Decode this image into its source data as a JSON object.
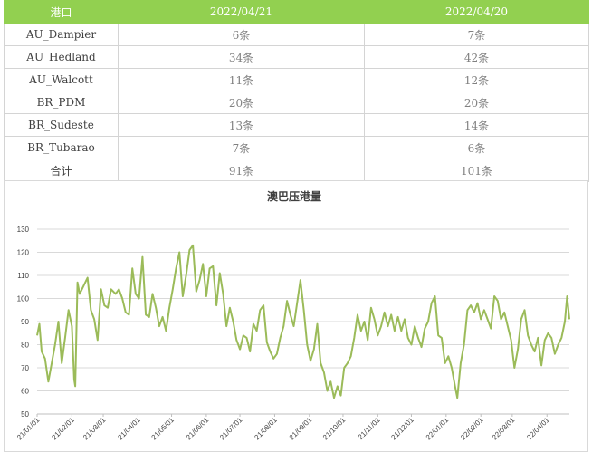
{
  "table": {
    "headers": [
      "港口",
      "2022/04/21",
      "2022/04/20"
    ],
    "rows": [
      [
        "AU_Dampier",
        "6条",
        "7条"
      ],
      [
        "AU_Hedland",
        "34条",
        "42条"
      ],
      [
        "AU_Walcott",
        "11条",
        "12条"
      ],
      [
        "BR_PDM",
        "20条",
        "20条"
      ],
      [
        "BR_Sudeste",
        "13条",
        "14条"
      ],
      [
        "BR_Tubarao",
        "7条",
        "6条"
      ],
      [
        "合计",
        "91条",
        "101条"
      ]
    ]
  },
  "chart_data": {
    "type": "line",
    "title": "澳巴压港量",
    "ylim": [
      50,
      130
    ],
    "yticks": [
      50,
      60,
      70,
      80,
      90,
      100,
      110,
      120,
      130
    ],
    "xlim": [
      "2021-01-01",
      "2022-04-21"
    ],
    "xticks": [
      {
        "date": "2021-01-01",
        "label": "21/01/01"
      },
      {
        "date": "2021-02-01",
        "label": "21/02/01"
      },
      {
        "date": "2021-03-01",
        "label": "21/03/01"
      },
      {
        "date": "2021-04-01",
        "label": "21/04/01"
      },
      {
        "date": "2021-05-01",
        "label": "21/05/01"
      },
      {
        "date": "2021-06-01",
        "label": "21/06/01"
      },
      {
        "date": "2021-07-01",
        "label": "21/07/01"
      },
      {
        "date": "2021-08-01",
        "label": "21/08/01"
      },
      {
        "date": "2021-09-01",
        "label": "21/09/01"
      },
      {
        "date": "2021-10-01",
        "label": "21/10/01"
      },
      {
        "date": "2021-11-01",
        "label": "21/11/01"
      },
      {
        "date": "2021-12-01",
        "label": "21/12/01"
      },
      {
        "date": "2022-01-01",
        "label": "22/01/01"
      },
      {
        "date": "2022-02-01",
        "label": "22/02/01"
      },
      {
        "date": "2022-03-01",
        "label": "22/03/01"
      },
      {
        "date": "2022-04-01",
        "label": "22/04/01"
      }
    ],
    "grid": true,
    "series": [
      {
        "color": "#9bbb59",
        "points": [
          [
            "2021-01-01",
            84
          ],
          [
            "2021-01-03",
            89
          ],
          [
            "2021-01-05",
            77
          ],
          [
            "2021-01-08",
            74
          ],
          [
            "2021-01-11",
            64
          ],
          [
            "2021-01-14",
            72
          ],
          [
            "2021-01-17",
            80
          ],
          [
            "2021-01-20",
            90
          ],
          [
            "2021-01-23",
            72
          ],
          [
            "2021-01-26",
            83
          ],
          [
            "2021-01-29",
            95
          ],
          [
            "2021-02-01",
            88
          ],
          [
            "2021-02-03",
            65
          ],
          [
            "2021-02-04",
            62
          ],
          [
            "2021-02-06",
            107
          ],
          [
            "2021-02-08",
            102
          ],
          [
            "2021-02-12",
            106
          ],
          [
            "2021-02-15",
            109
          ],
          [
            "2021-02-18",
            95
          ],
          [
            "2021-02-21",
            91
          ],
          [
            "2021-02-24",
            82
          ],
          [
            "2021-02-27",
            104
          ],
          [
            "2021-03-02",
            97
          ],
          [
            "2021-03-05",
            96
          ],
          [
            "2021-03-08",
            104
          ],
          [
            "2021-03-12",
            102
          ],
          [
            "2021-03-15",
            104
          ],
          [
            "2021-03-18",
            100
          ],
          [
            "2021-03-21",
            94
          ],
          [
            "2021-03-24",
            93
          ],
          [
            "2021-03-27",
            113
          ],
          [
            "2021-03-30",
            102
          ],
          [
            "2021-04-02",
            100
          ],
          [
            "2021-04-05",
            118
          ],
          [
            "2021-04-08",
            93
          ],
          [
            "2021-04-11",
            92
          ],
          [
            "2021-04-14",
            102
          ],
          [
            "2021-04-17",
            96
          ],
          [
            "2021-04-20",
            88
          ],
          [
            "2021-04-23",
            92
          ],
          [
            "2021-04-26",
            86
          ],
          [
            "2021-04-29",
            96
          ],
          [
            "2021-05-02",
            104
          ],
          [
            "2021-05-05",
            113
          ],
          [
            "2021-05-08",
            120
          ],
          [
            "2021-05-11",
            101
          ],
          [
            "2021-05-14",
            110
          ],
          [
            "2021-05-17",
            121
          ],
          [
            "2021-05-20",
            123
          ],
          [
            "2021-05-23",
            103
          ],
          [
            "2021-05-26",
            108
          ],
          [
            "2021-05-29",
            115
          ],
          [
            "2021-06-01",
            101
          ],
          [
            "2021-06-04",
            113
          ],
          [
            "2021-06-07",
            114
          ],
          [
            "2021-06-10",
            97
          ],
          [
            "2021-06-13",
            111
          ],
          [
            "2021-06-16",
            102
          ],
          [
            "2021-06-19",
            88
          ],
          [
            "2021-06-22",
            96
          ],
          [
            "2021-06-25",
            90
          ],
          [
            "2021-06-28",
            82
          ],
          [
            "2021-07-01",
            78
          ],
          [
            "2021-07-04",
            84
          ],
          [
            "2021-07-07",
            83
          ],
          [
            "2021-07-10",
            77
          ],
          [
            "2021-07-13",
            89
          ],
          [
            "2021-07-16",
            86
          ],
          [
            "2021-07-19",
            95
          ],
          [
            "2021-07-22",
            97
          ],
          [
            "2021-07-25",
            81
          ],
          [
            "2021-07-28",
            77
          ],
          [
            "2021-07-31",
            74
          ],
          [
            "2021-08-03",
            76
          ],
          [
            "2021-08-06",
            83
          ],
          [
            "2021-08-09",
            88
          ],
          [
            "2021-08-12",
            99
          ],
          [
            "2021-08-15",
            93
          ],
          [
            "2021-08-18",
            88
          ],
          [
            "2021-08-21",
            98
          ],
          [
            "2021-08-24",
            108
          ],
          [
            "2021-08-27",
            95
          ],
          [
            "2021-08-30",
            80
          ],
          [
            "2021-09-02",
            73
          ],
          [
            "2021-09-05",
            78
          ],
          [
            "2021-09-08",
            89
          ],
          [
            "2021-09-11",
            72
          ],
          [
            "2021-09-14",
            68
          ],
          [
            "2021-09-17",
            60
          ],
          [
            "2021-09-20",
            64
          ],
          [
            "2021-09-23",
            57
          ],
          [
            "2021-09-26",
            62
          ],
          [
            "2021-09-29",
            58
          ],
          [
            "2021-10-02",
            70
          ],
          [
            "2021-10-05",
            72
          ],
          [
            "2021-10-08",
            75
          ],
          [
            "2021-10-11",
            83
          ],
          [
            "2021-10-14",
            93
          ],
          [
            "2021-10-17",
            86
          ],
          [
            "2021-10-20",
            90
          ],
          [
            "2021-10-23",
            82
          ],
          [
            "2021-10-26",
            96
          ],
          [
            "2021-10-29",
            91
          ],
          [
            "2021-11-01",
            84
          ],
          [
            "2021-11-04",
            88
          ],
          [
            "2021-11-07",
            94
          ],
          [
            "2021-11-10",
            88
          ],
          [
            "2021-11-13",
            93
          ],
          [
            "2021-11-16",
            86
          ],
          [
            "2021-11-19",
            92
          ],
          [
            "2021-11-22",
            86
          ],
          [
            "2021-11-25",
            91
          ],
          [
            "2021-11-28",
            83
          ],
          [
            "2021-12-01",
            80
          ],
          [
            "2021-12-04",
            88
          ],
          [
            "2021-12-07",
            83
          ],
          [
            "2021-12-10",
            79
          ],
          [
            "2021-12-13",
            87
          ],
          [
            "2021-12-16",
            90
          ],
          [
            "2021-12-19",
            98
          ],
          [
            "2021-12-22",
            101
          ],
          [
            "2021-12-25",
            84
          ],
          [
            "2021-12-28",
            83
          ],
          [
            "2021-12-31",
            72
          ],
          [
            "2022-01-03",
            75
          ],
          [
            "2022-01-06",
            70
          ],
          [
            "2022-01-09",
            62
          ],
          [
            "2022-01-11",
            57
          ],
          [
            "2022-01-14",
            72
          ],
          [
            "2022-01-17",
            80
          ],
          [
            "2022-01-20",
            95
          ],
          [
            "2022-01-23",
            97
          ],
          [
            "2022-01-26",
            94
          ],
          [
            "2022-01-29",
            98
          ],
          [
            "2022-02-01",
            91
          ],
          [
            "2022-02-04",
            95
          ],
          [
            "2022-02-07",
            91
          ],
          [
            "2022-02-10",
            87
          ],
          [
            "2022-02-13",
            101
          ],
          [
            "2022-02-16",
            99
          ],
          [
            "2022-02-19",
            91
          ],
          [
            "2022-02-22",
            94
          ],
          [
            "2022-02-25",
            88
          ],
          [
            "2022-02-28",
            82
          ],
          [
            "2022-03-03",
            70
          ],
          [
            "2022-03-06",
            78
          ],
          [
            "2022-03-09",
            91
          ],
          [
            "2022-03-12",
            95
          ],
          [
            "2022-03-15",
            84
          ],
          [
            "2022-03-18",
            80
          ],
          [
            "2022-03-21",
            77
          ],
          [
            "2022-03-24",
            83
          ],
          [
            "2022-03-27",
            71
          ],
          [
            "2022-03-30",
            82
          ],
          [
            "2022-04-02",
            85
          ],
          [
            "2022-04-05",
            83
          ],
          [
            "2022-04-08",
            76
          ],
          [
            "2022-04-11",
            80
          ],
          [
            "2022-04-14",
            83
          ],
          [
            "2022-04-17",
            90
          ],
          [
            "2022-04-19",
            101
          ],
          [
            "2022-04-21",
            91
          ]
        ]
      }
    ]
  }
}
